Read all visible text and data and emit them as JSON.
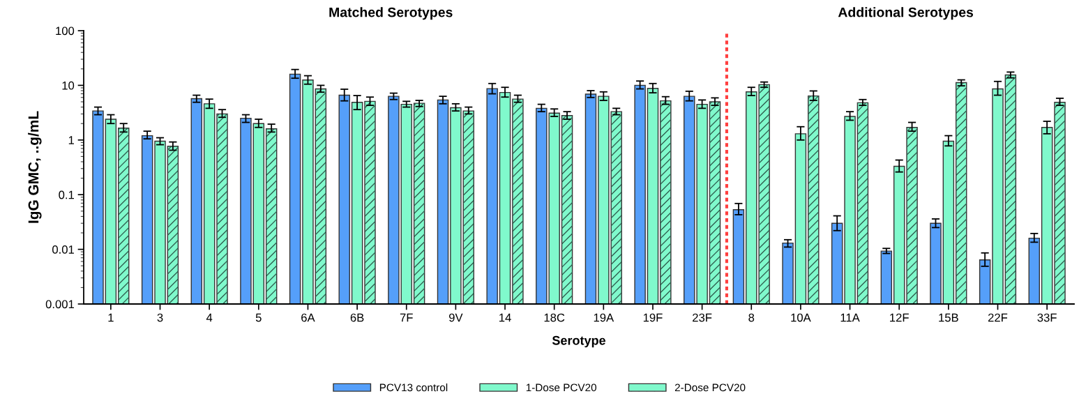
{
  "chart_data": {
    "type": "bar",
    "xlabel": "Serotype",
    "ylabel": "IgG GMC, ..g/mL",
    "categories": [
      "1",
      "3",
      "4",
      "5",
      "6A",
      "6B",
      "7F",
      "9V",
      "14",
      "18C",
      "19A",
      "19F",
      "23F",
      "8",
      "10A",
      "11A",
      "12F",
      "15B",
      "22F",
      "33F"
    ],
    "series": [
      {
        "name": "PCV13 control",
        "color": "#559ffa",
        "values": [
          3.4,
          1.2,
          5.7,
          2.5,
          16,
          6.6,
          6.3,
          5.4,
          8.7,
          3.8,
          6.9,
          10,
          6.3,
          0.053,
          0.013,
          0.03,
          0.0093,
          0.03,
          0.0064,
          0.016
        ],
        "errors": [
          [
            2.9,
            4.0
          ],
          [
            1.05,
            1.45
          ],
          [
            4.9,
            6.6
          ],
          [
            2.1,
            2.9
          ],
          [
            13.5,
            19.5
          ],
          [
            5.2,
            8.5
          ],
          [
            5.5,
            7.2
          ],
          [
            4.6,
            6.3
          ],
          [
            7.0,
            10.8
          ],
          [
            3.3,
            4.5
          ],
          [
            6.0,
            8.0
          ],
          [
            8.6,
            12
          ],
          [
            5.2,
            7.8
          ],
          [
            0.043,
            0.069
          ],
          [
            0.011,
            0.015
          ],
          [
            0.022,
            0.041
          ],
          [
            0.0084,
            0.0104
          ],
          [
            0.025,
            0.036
          ],
          [
            0.0049,
            0.0086
          ],
          [
            0.0135,
            0.0195
          ]
        ]
      },
      {
        "name": "1-Dose PCV20",
        "color": "#80f9cc",
        "values": [
          2.4,
          0.95,
          4.6,
          2.0,
          12.5,
          4.9,
          4.5,
          3.9,
          7.4,
          3.1,
          6.3,
          8.8,
          4.5,
          7.6,
          1.3,
          2.7,
          0.33,
          0.95,
          8.6,
          1.7
        ],
        "errors": [
          [
            2.0,
            2.9
          ],
          [
            0.82,
            1.1
          ],
          [
            3.8,
            5.6
          ],
          [
            1.7,
            2.4
          ],
          [
            10.5,
            15
          ],
          [
            3.6,
            6.5
          ],
          [
            4.0,
            5.1
          ],
          [
            3.4,
            4.6
          ],
          [
            6.1,
            9.2
          ],
          [
            2.7,
            3.7
          ],
          [
            5.3,
            7.6
          ],
          [
            7.3,
            10.8
          ],
          [
            3.8,
            5.4
          ],
          [
            6.5,
            9.2
          ],
          [
            1.0,
            1.75
          ],
          [
            2.3,
            3.3
          ],
          [
            0.26,
            0.43
          ],
          [
            0.78,
            1.2
          ],
          [
            6.6,
            11.8
          ],
          [
            1.3,
            2.2
          ]
        ]
      },
      {
        "name": "2-Dose PCV20",
        "color": "#80f9cc",
        "values": [
          1.65,
          0.77,
          3.0,
          1.6,
          8.6,
          5.1,
          4.7,
          3.4,
          5.6,
          2.8,
          3.3,
          5.2,
          5.0,
          10.3,
          6.4,
          4.8,
          1.7,
          11.2,
          15.5,
          4.9
        ],
        "errors": [
          [
            1.4,
            2.0
          ],
          [
            0.65,
            0.92
          ],
          [
            2.6,
            3.6
          ],
          [
            1.4,
            1.95
          ],
          [
            7.5,
            10
          ],
          [
            4.3,
            6.1
          ],
          [
            4.1,
            5.3
          ],
          [
            3.0,
            4.0
          ],
          [
            4.9,
            6.6
          ],
          [
            2.4,
            3.3
          ],
          [
            2.9,
            3.8
          ],
          [
            4.5,
            6.2
          ],
          [
            4.3,
            5.9
          ],
          [
            9.2,
            11.5
          ],
          [
            5.3,
            7.9
          ],
          [
            4.3,
            5.5
          ],
          [
            1.45,
            2.1
          ],
          [
            9.8,
            12.6
          ],
          [
            13.7,
            17.5
          ],
          [
            4.3,
            5.8
          ]
        ]
      }
    ],
    "log": true,
    "ylim": [
      0.001,
      100
    ],
    "yticks": [
      {
        "value": 0.001,
        "label": "0.001"
      },
      {
        "value": 0.01,
        "label": "0.01"
      },
      {
        "value": 0.1,
        "label": "0.1"
      },
      1,
      10,
      100
    ],
    "annotations": [
      "Matched Serotypes",
      "Additional Serotypes"
    ],
    "grid": false,
    "legend": "bottom"
  }
}
